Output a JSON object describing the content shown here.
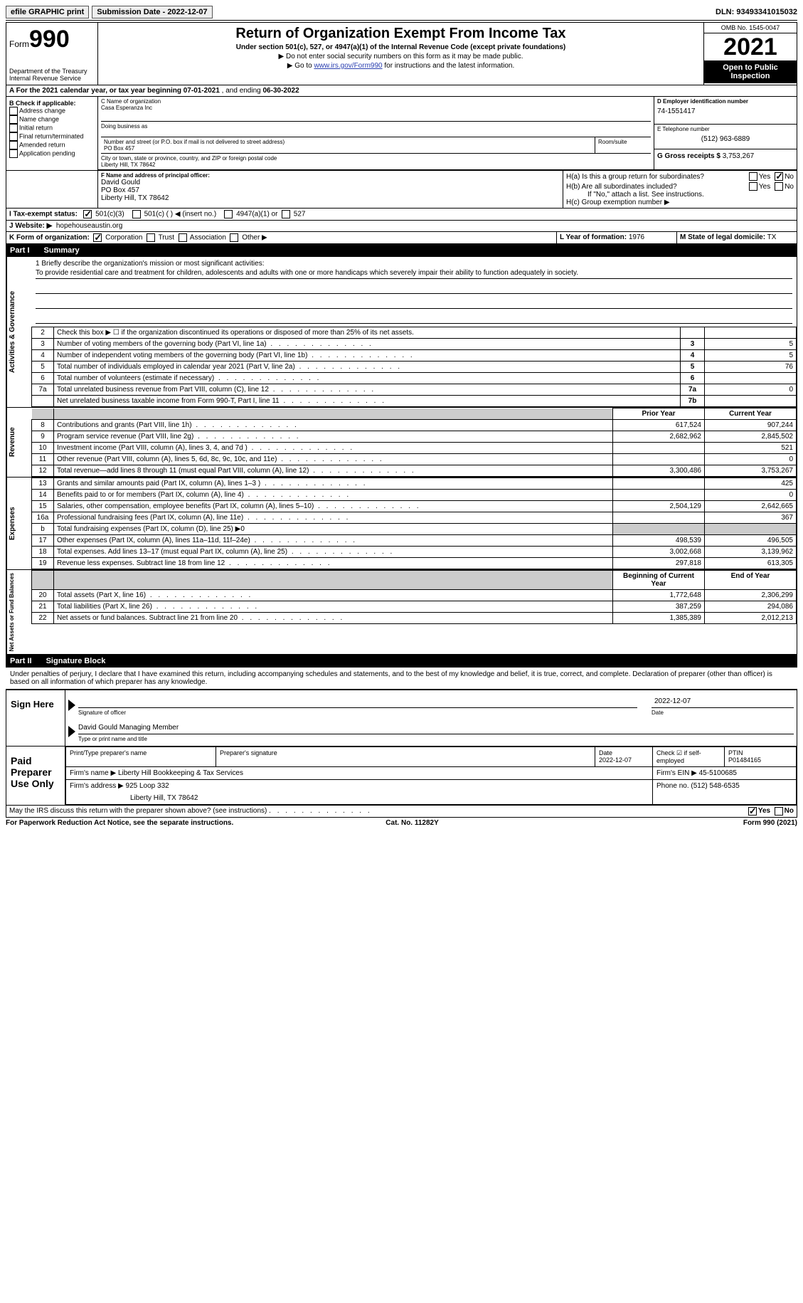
{
  "topbar": {
    "efile_btn": "efile GRAPHIC print",
    "submission_date_label": "Submission Date - 2022-12-07",
    "dln_label": "DLN: 93493341015032"
  },
  "header": {
    "form_word": "Form",
    "form_num": "990",
    "dept": "Department of the Treasury Internal Revenue Service",
    "title": "Return of Organization Exempt From Income Tax",
    "sub": "Under section 501(c), 527, or 4947(a)(1) of the Internal Revenue Code (except private foundations)",
    "note1": "▶ Do not enter social security numbers on this form as it may be made public.",
    "note2_pre": "▶ Go to ",
    "note2_link": "www.irs.gov/Form990",
    "note2_post": " for instructions and the latest information.",
    "omb": "OMB No. 1545-0047",
    "year": "2021",
    "otp": "Open to Public Inspection"
  },
  "lineA": {
    "text_pre": "A For the 2021 calendar year, or tax year beginning ",
    "begin": "07-01-2021",
    "mid": " , and ending ",
    "end": "06-30-2022"
  },
  "colB": {
    "label": "B Check if applicable:",
    "items": [
      "Address change",
      "Name change",
      "Initial return",
      "Final return/terminated",
      "Amended return",
      "Application pending"
    ]
  },
  "boxC": {
    "label": "C Name of organization",
    "name": "Casa Esperanza Inc",
    "dba_label": "Doing business as",
    "addr_label": "Number and street (or P.O. box if mail is not delivered to street address)",
    "room_label": "Room/suite",
    "addr": "PO Box 457",
    "city_label": "City or town, state or province, country, and ZIP or foreign postal code",
    "city": "Liberty Hill, TX  78642"
  },
  "boxD": {
    "label": "D Employer identification number",
    "val": "74-1551417"
  },
  "boxE": {
    "label": "E Telephone number",
    "val": "(512) 963-6889"
  },
  "boxG": {
    "label": "G Gross receipts $",
    "val": "3,753,267"
  },
  "boxF": {
    "label": "F Name and address of principal officer:",
    "name": "David Gould",
    "addr1": "PO Box 457",
    "addr2": "Liberty Hill, TX  78642"
  },
  "boxH": {
    "a": "H(a)  Is this a group return for subordinates?",
    "b": "H(b)  Are all subordinates included?",
    "b_note": "If \"No,\" attach a list. See instructions.",
    "c": "H(c)  Group exemption number ▶",
    "yes": "Yes",
    "no": "No"
  },
  "boxI": {
    "label": "I   Tax-exempt status:",
    "opt1": "501(c)(3)",
    "opt2": "501(c) (   ) ◀ (insert no.)",
    "opt3": "4947(a)(1) or",
    "opt4": "527"
  },
  "boxJ": {
    "label": "J   Website: ▶",
    "val": "hopehouseaustin.org"
  },
  "boxK": {
    "label": "K Form of organization:",
    "opts": [
      "Corporation",
      "Trust",
      "Association",
      "Other ▶"
    ]
  },
  "boxL": {
    "label": "L Year of formation:",
    "val": "1976"
  },
  "boxM": {
    "label": "M State of legal domicile:",
    "val": "TX"
  },
  "partI": {
    "name": "Part I",
    "title": "Summary"
  },
  "mission": {
    "lead": "1  Briefly describe the organization's mission or most significant activities:",
    "text": "To provide residential care and treatment for children, adolescents and adults with one or more handicaps which severely impair their ability to function adequately in society."
  },
  "gov_lines": [
    {
      "n": "2",
      "d": "Check this box ▶ ☐  if the organization discontinued its operations or disposed of more than 25% of its net assets.",
      "box": "",
      "v": ""
    },
    {
      "n": "3",
      "d": "Number of voting members of the governing body (Part VI, line 1a)",
      "box": "3",
      "v": "5"
    },
    {
      "n": "4",
      "d": "Number of independent voting members of the governing body (Part VI, line 1b)",
      "box": "4",
      "v": "5"
    },
    {
      "n": "5",
      "d": "Total number of individuals employed in calendar year 2021 (Part V, line 2a)",
      "box": "5",
      "v": "76"
    },
    {
      "n": "6",
      "d": "Total number of volunteers (estimate if necessary)",
      "box": "6",
      "v": ""
    },
    {
      "n": "7a",
      "d": "Total unrelated business revenue from Part VIII, column (C), line 12",
      "box": "7a",
      "v": "0"
    },
    {
      "n": "",
      "d": "Net unrelated business taxable income from Form 990-T, Part I, line 11",
      "box": "7b",
      "v": ""
    }
  ],
  "rev_header": {
    "prior": "Prior Year",
    "curr": "Current Year"
  },
  "rev_lines": [
    {
      "n": "8",
      "d": "Contributions and grants (Part VIII, line 1h)",
      "p": "617,524",
      "c": "907,244"
    },
    {
      "n": "9",
      "d": "Program service revenue (Part VIII, line 2g)",
      "p": "2,682,962",
      "c": "2,845,502"
    },
    {
      "n": "10",
      "d": "Investment income (Part VIII, column (A), lines 3, 4, and 7d )",
      "p": "",
      "c": "521"
    },
    {
      "n": "11",
      "d": "Other revenue (Part VIII, column (A), lines 5, 6d, 8c, 9c, 10c, and 11e)",
      "p": "",
      "c": "0"
    },
    {
      "n": "12",
      "d": "Total revenue—add lines 8 through 11 (must equal Part VIII, column (A), line 12)",
      "p": "3,300,486",
      "c": "3,753,267"
    }
  ],
  "exp_lines": [
    {
      "n": "13",
      "d": "Grants and similar amounts paid (Part IX, column (A), lines 1–3 )",
      "p": "",
      "c": "425"
    },
    {
      "n": "14",
      "d": "Benefits paid to or for members (Part IX, column (A), line 4)",
      "p": "",
      "c": "0"
    },
    {
      "n": "15",
      "d": "Salaries, other compensation, employee benefits (Part IX, column (A), lines 5–10)",
      "p": "2,504,129",
      "c": "2,642,665"
    },
    {
      "n": "16a",
      "d": "Professional fundraising fees (Part IX, column (A), line 11e)",
      "p": "",
      "c": "367"
    },
    {
      "n": "b",
      "d": "Total fundraising expenses (Part IX, column (D), line 25) ▶0",
      "p": "GRAY",
      "c": "GRAY"
    },
    {
      "n": "17",
      "d": "Other expenses (Part IX, column (A), lines 11a–11d, 11f–24e)",
      "p": "498,539",
      "c": "496,505"
    },
    {
      "n": "18",
      "d": "Total expenses. Add lines 13–17 (must equal Part IX, column (A), line 25)",
      "p": "3,002,668",
      "c": "3,139,962"
    },
    {
      "n": "19",
      "d": "Revenue less expenses. Subtract line 18 from line 12",
      "p": "297,818",
      "c": "613,305"
    }
  ],
  "na_header": {
    "prior": "Beginning of Current Year",
    "curr": "End of Year"
  },
  "na_lines": [
    {
      "n": "20",
      "d": "Total assets (Part X, line 16)",
      "p": "1,772,648",
      "c": "2,306,299"
    },
    {
      "n": "21",
      "d": "Total liabilities (Part X, line 26)",
      "p": "387,259",
      "c": "294,086"
    },
    {
      "n": "22",
      "d": "Net assets or fund balances. Subtract line 21 from line 20",
      "p": "1,385,389",
      "c": "2,012,213"
    }
  ],
  "vlabels": {
    "gov": "Activities & Governance",
    "rev": "Revenue",
    "exp": "Expenses",
    "na": "Net Assets or Fund Balances"
  },
  "partII": {
    "name": "Part II",
    "title": "Signature Block"
  },
  "penalty": "Under penalties of perjury, I declare that I have examined this return, including accompanying schedules and statements, and to the best of my knowledge and belief, it is true, correct, and complete. Declaration of preparer (other than officer) is based on all information of which preparer has any knowledge.",
  "sign": {
    "here": "Sign Here",
    "sig_label": "Signature of officer",
    "date_label": "Date",
    "date_val": "2022-12-07",
    "name_label": "Type or print name and title",
    "name_val": "David Gould  Managing Member"
  },
  "prep": {
    "here": "Paid Preparer Use Only",
    "h1": "Print/Type preparer's name",
    "h2": "Preparer's signature",
    "h3_l": "Date",
    "h3_v": "2022-12-07",
    "h4_l": "Check ☑ if self-employed",
    "h5_l": "PTIN",
    "h5_v": "P01484165",
    "firm_name_l": "Firm's name    ▶",
    "firm_name_v": "Liberty Hill Bookkeeping & Tax Services",
    "firm_ein_l": "Firm's EIN ▶",
    "firm_ein_v": "45-5100685",
    "firm_addr_l": "Firm's address ▶",
    "firm_addr_v1": "925 Loop 332",
    "firm_addr_v2": "Liberty Hill, TX  78642",
    "phone_l": "Phone no.",
    "phone_v": "(512) 548-6535"
  },
  "discuss": {
    "q": "May the IRS discuss this return with the preparer shown above? (see instructions)",
    "yes": "Yes",
    "no": "No"
  },
  "footer": {
    "left": "For Paperwork Reduction Act Notice, see the separate instructions.",
    "mid": "Cat. No. 11282Y",
    "right": "Form 990 (2021)"
  }
}
